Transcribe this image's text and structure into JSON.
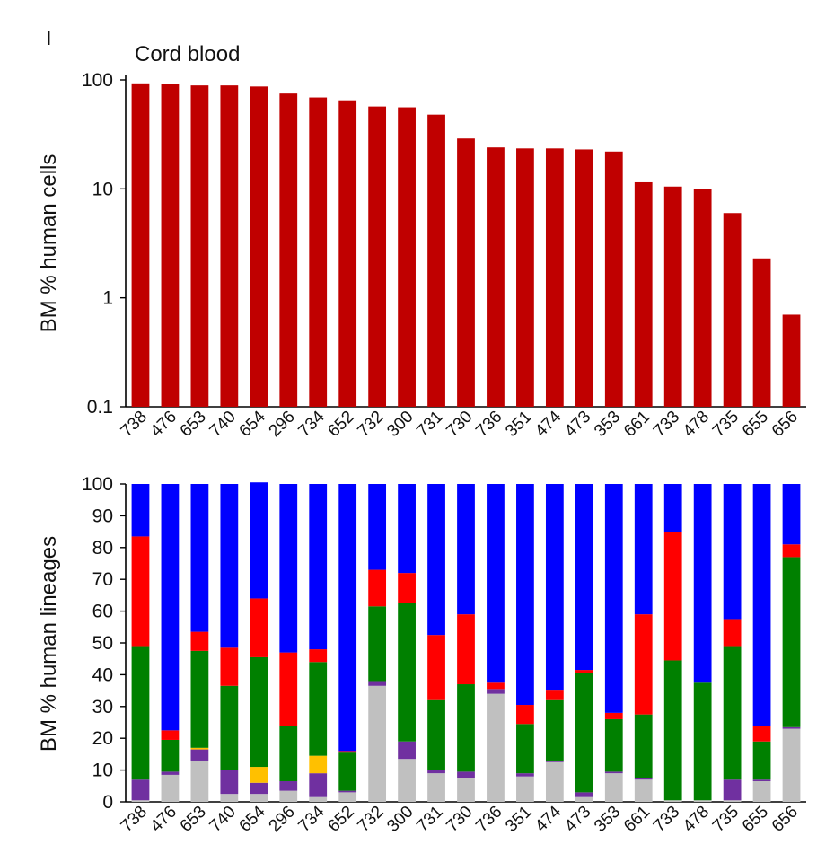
{
  "panel_label": "l",
  "chart_data": [
    {
      "type": "bar",
      "title": "Cord blood",
      "ylabel": "BM % human cells",
      "yscale": "log",
      "ylim": [
        0.1,
        100
      ],
      "yticks": [
        "100",
        "10",
        "1",
        "0.1"
      ],
      "color": "#c00000",
      "categories": [
        "738",
        "476",
        "653",
        "740",
        "654",
        "296",
        "734",
        "652",
        "732",
        "300",
        "731",
        "730",
        "736",
        "351",
        "474",
        "473",
        "353",
        "661",
        "733",
        "478",
        "735",
        "655",
        "656"
      ],
      "values": [
        93,
        91,
        89,
        89,
        87,
        75,
        69,
        65,
        57,
        56,
        48,
        29,
        24,
        23.5,
        23.5,
        23,
        22,
        11.5,
        10.5,
        10,
        6,
        2.3,
        0.7
      ]
    },
    {
      "type": "bar",
      "stacked": true,
      "ylabel": "BM % human lineages",
      "ylim": [
        0,
        100
      ],
      "yticks": [
        "100",
        "90",
        "80",
        "70",
        "60",
        "50",
        "40",
        "30",
        "20",
        "10",
        "0"
      ],
      "categories": [
        "738",
        "476",
        "653",
        "740",
        "654",
        "296",
        "734",
        "652",
        "732",
        "300",
        "731",
        "730",
        "736",
        "351",
        "474",
        "473",
        "353",
        "661",
        "733",
        "478",
        "735",
        "655",
        "656"
      ],
      "series": [
        {
          "color": "#c0c0c0",
          "values": [
            0.5,
            8.5,
            13,
            2.5,
            2.5,
            3.5,
            1.5,
            3,
            36.5,
            13.5,
            9,
            7.5,
            34,
            8,
            12.5,
            1.5,
            9,
            7,
            0.5,
            0.5,
            0.5,
            6.5,
            23
          ]
        },
        {
          "color": "#7030a0",
          "values": [
            6.5,
            1,
            3.5,
            7.5,
            3.5,
            3,
            7.5,
            0.5,
            1.5,
            5.5,
            1,
            2,
            1.5,
            1,
            0.5,
            1.5,
            0.5,
            0.5,
            0,
            0,
            6.5,
            0.5,
            0.5
          ]
        },
        {
          "color": "#ffc000",
          "values": [
            0,
            0,
            0.5,
            0,
            5,
            0,
            5.5,
            0,
            0,
            0,
            0,
            0,
            0,
            0,
            0,
            0,
            0,
            0,
            0,
            0,
            0,
            0,
            0
          ]
        },
        {
          "color": "#008000",
          "values": [
            42,
            10,
            30.5,
            26.5,
            34.5,
            17.5,
            29.5,
            12,
            23.5,
            43.5,
            22,
            27.5,
            0,
            15.5,
            19,
            37.5,
            16.5,
            20,
            44,
            37,
            42,
            12,
            53.5
          ]
        },
        {
          "color": "#ff0000",
          "values": [
            34.5,
            3,
            6,
            12,
            18.5,
            23,
            4,
            0.5,
            11.5,
            9.5,
            20.5,
            22,
            2,
            6,
            3,
            1,
            2,
            31.5,
            40.5,
            0,
            8.5,
            5,
            4
          ]
        },
        {
          "color": "#0000ff",
          "values": [
            16.5,
            77.5,
            46.5,
            51.5,
            36.5,
            53,
            52,
            84,
            27,
            28,
            47.5,
            41,
            62.5,
            69.5,
            65,
            58.5,
            72,
            41,
            15,
            62.5,
            42.5,
            76,
            19
          ]
        }
      ]
    }
  ]
}
